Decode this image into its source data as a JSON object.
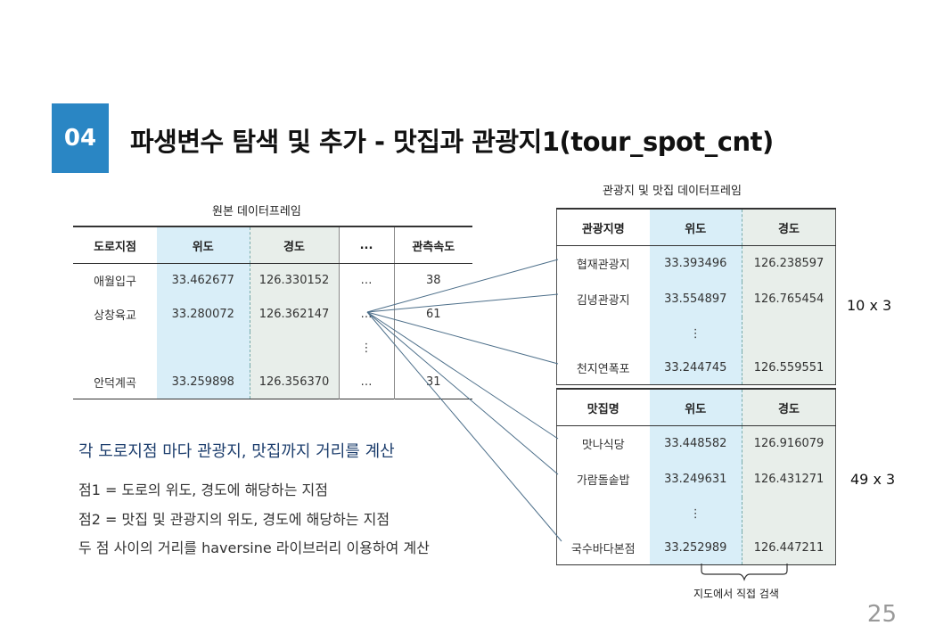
{
  "header": {
    "badge": "04",
    "title": "파생변수 탐색 및 추가 - 맛집과 관광지1(tour_spot_cnt)"
  },
  "original_table": {
    "caption": "원본 데이터프레임",
    "headers": [
      "도로지점",
      "위도",
      "경도",
      "...",
      "관측속도"
    ],
    "rows": [
      [
        "애월입구",
        "33.462677",
        "126.330152",
        "…",
        "38"
      ],
      [
        "상창육교",
        "33.280072",
        "126.362147",
        "…",
        "61"
      ],
      [
        "",
        "",
        "",
        "⋮",
        ""
      ],
      [
        "안덕계곡",
        "33.259898",
        "126.356370",
        "…",
        "31"
      ]
    ]
  },
  "tour_table": {
    "caption": "관광지 및 맛집 데이터프레임",
    "headers": [
      "관광지명",
      "위도",
      "경도"
    ],
    "rows": [
      [
        "협재관광지",
        "33.393496",
        "126.238597"
      ],
      [
        "김녕관광지",
        "33.554897",
        "126.765454"
      ],
      [
        "",
        "⋮",
        ""
      ],
      [
        "천지연폭포",
        "33.244745",
        "126.559551"
      ]
    ],
    "dim": "10 x 3"
  },
  "food_table": {
    "headers": [
      "맛집명",
      "위도",
      "경도"
    ],
    "rows": [
      [
        "맛나식당",
        "33.448582",
        "126.916079"
      ],
      [
        "가람돌솥밥",
        "33.249631",
        "126.431271"
      ],
      [
        "",
        "⋮",
        ""
      ],
      [
        "국수바다본점",
        "33.252989",
        "126.447211"
      ]
    ],
    "dim": "49 x 3",
    "note": "지도에서 직접 검색"
  },
  "description": {
    "highlight": "각 도로지점 마다 관광지, 맛집까지 거리를 계산",
    "lines": [
      "점1 = 도로의 위도, 경도에 해당하는 지점",
      "점2 = 맛집 및 관광지의 위도, 경도에 해당하는 지점",
      "두 점 사이의 거리를 haversine 라이브러리 이용하여 계산"
    ]
  },
  "page_number": "25",
  "colors": {
    "badge": "#2a86c4",
    "lat_column": "#d9eef8",
    "lng_column": "#e8eeea",
    "highlight_text": "#1e3f6e"
  }
}
